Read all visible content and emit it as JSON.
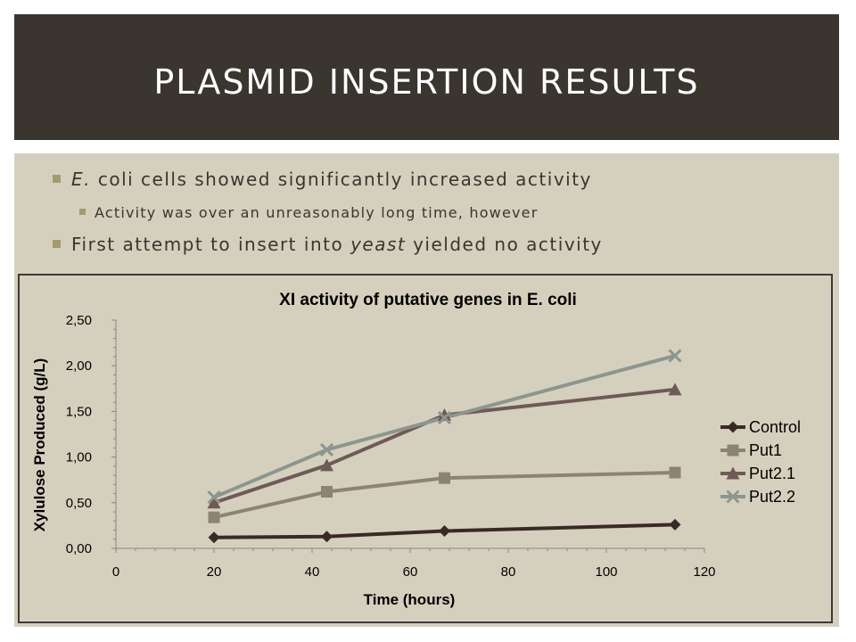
{
  "slide": {
    "title": "PLASMID INSERTION RESULTS",
    "bullets": {
      "b1_italic": "E.",
      "b1_rest": " coli cells showed significantly increased activity",
      "b2": "Activity was over an unreasonably long time, however",
      "b3_pre": "First attempt to insert into ",
      "b3_italic": "yeast",
      "b3_post": " yielded no activity"
    }
  },
  "chart_data": {
    "type": "line",
    "title": "XI activity of putative genes in E. coli",
    "xlabel": "Time (hours)",
    "ylabel": "Xylulose Produced (g/L)",
    "xlim": [
      0,
      120
    ],
    "ylim": [
      0,
      2.5
    ],
    "xticks": [
      "0",
      "20",
      "40",
      "60",
      "80",
      "100",
      "120"
    ],
    "yticks": [
      "0,00",
      "0,50",
      "1,00",
      "1,50",
      "2,00",
      "2,50"
    ],
    "grid": false,
    "legend_position": "right",
    "series": [
      {
        "name": "Control",
        "color": "#3a2a26",
        "marker": "diamond",
        "x": [
          20,
          43,
          67,
          114
        ],
        "y": [
          0.12,
          0.13,
          0.19,
          0.26
        ]
      },
      {
        "name": "Put1",
        "color": "#8c8471",
        "marker": "square",
        "x": [
          20,
          43,
          67,
          114
        ],
        "y": [
          0.34,
          0.62,
          0.77,
          0.83
        ]
      },
      {
        "name": "Put2.1",
        "color": "#6e5a56",
        "marker": "triangle",
        "x": [
          20,
          43,
          67,
          114
        ],
        "y": [
          0.5,
          0.91,
          1.46,
          1.74
        ]
      },
      {
        "name": "Put2.2",
        "color": "#8d9590",
        "marker": "x",
        "x": [
          20,
          43,
          67,
          114
        ],
        "y": [
          0.56,
          1.08,
          1.43,
          2.11
        ]
      }
    ]
  }
}
